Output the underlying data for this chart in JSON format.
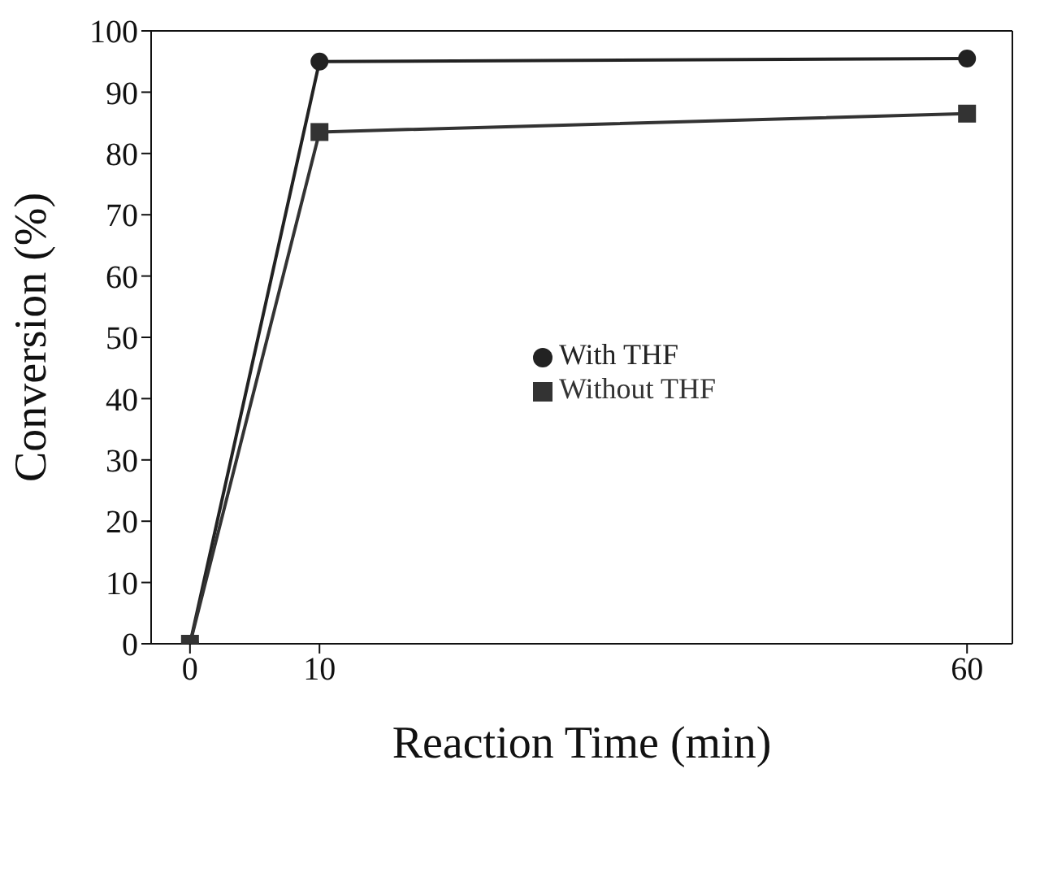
{
  "chart_data": {
    "type": "line",
    "xlabel": "Reaction Time (min)",
    "ylabel": "Conversion (%)",
    "x": [
      0,
      10,
      60
    ],
    "xlim": [
      -3,
      63.5
    ],
    "xticks": [
      0,
      10,
      60
    ],
    "ylim": [
      0,
      100
    ],
    "yticks": [
      0,
      10,
      20,
      30,
      40,
      50,
      60,
      70,
      80,
      90,
      100
    ],
    "legend": "center",
    "line_style": "solid",
    "series": [
      {
        "name": "With THF",
        "color": "#222222",
        "marker": "circle",
        "values": [
          0,
          95,
          95.5
        ]
      },
      {
        "name": "Without THF",
        "color": "#333333",
        "marker": "square",
        "values": [
          0,
          83.5,
          86.5
        ]
      }
    ]
  }
}
